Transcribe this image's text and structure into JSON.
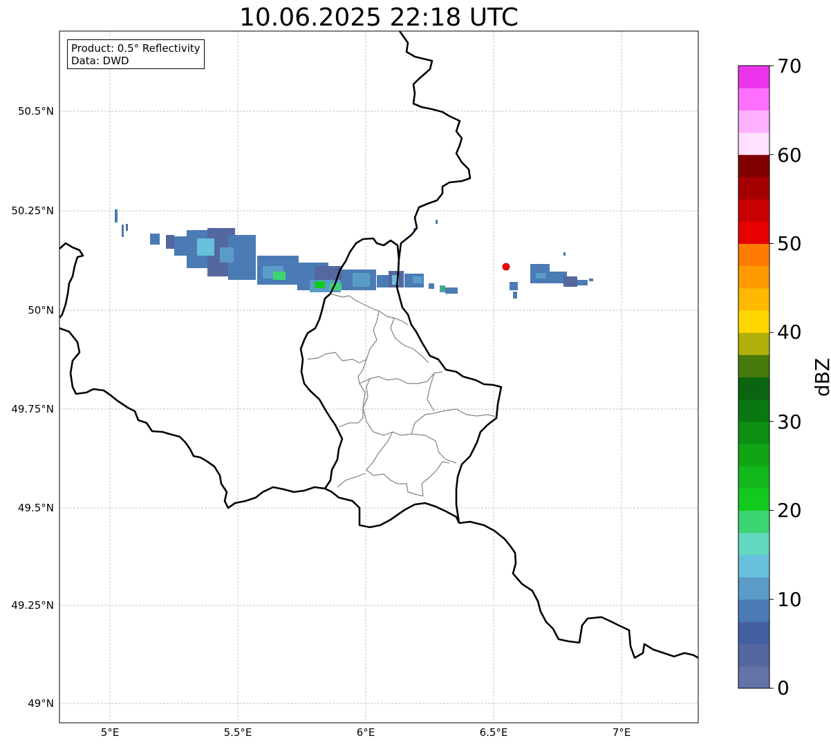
{
  "title": "10.06.2025 22:18 UTC",
  "info_box": {
    "product": "Product: 0.5° Reflectivity",
    "data": "Data: DWD"
  },
  "map": {
    "lon_range": [
      4.8,
      7.3
    ],
    "lat_range": [
      48.95,
      50.7
    ],
    "lat_ticks": [
      "50.5°N",
      "50.25°N",
      "50°N",
      "49.75°N",
      "49.5°N",
      "49.25°N",
      "49°N"
    ],
    "lon_ticks": [
      "5°E",
      "5.5°E",
      "6°E",
      "6.5°E",
      "7°E"
    ],
    "gridlines": true,
    "radar_site_marker": {
      "lon": 6.55,
      "lat": 50.11,
      "color": "#ff0000"
    },
    "border_color": "#000000",
    "district_color": "#808080"
  },
  "colorbar": {
    "label": "dBZ",
    "min": 0,
    "max": 70,
    "tick_labels": [
      "0",
      "10",
      "20",
      "30",
      "40",
      "50",
      "60",
      "70"
    ],
    "colors": [
      "#6472a6",
      "#54679f",
      "#4560a2",
      "#4b7bb4",
      "#5a9cc7",
      "#67c0dc",
      "#63d8c0",
      "#3dd571",
      "#12ca1e",
      "#12b71c",
      "#11a515",
      "#0d8f13",
      "#0a7812",
      "#0a6410",
      "#487a0c",
      "#b0b00a",
      "#fed700",
      "#feb900",
      "#fe9b00",
      "#fe7d00",
      "#e60000",
      "#c80000",
      "#a50000",
      "#800000",
      "#ffe0ff",
      "#ffb1ff",
      "#ff70ff",
      "#ec34ec"
    ]
  }
}
